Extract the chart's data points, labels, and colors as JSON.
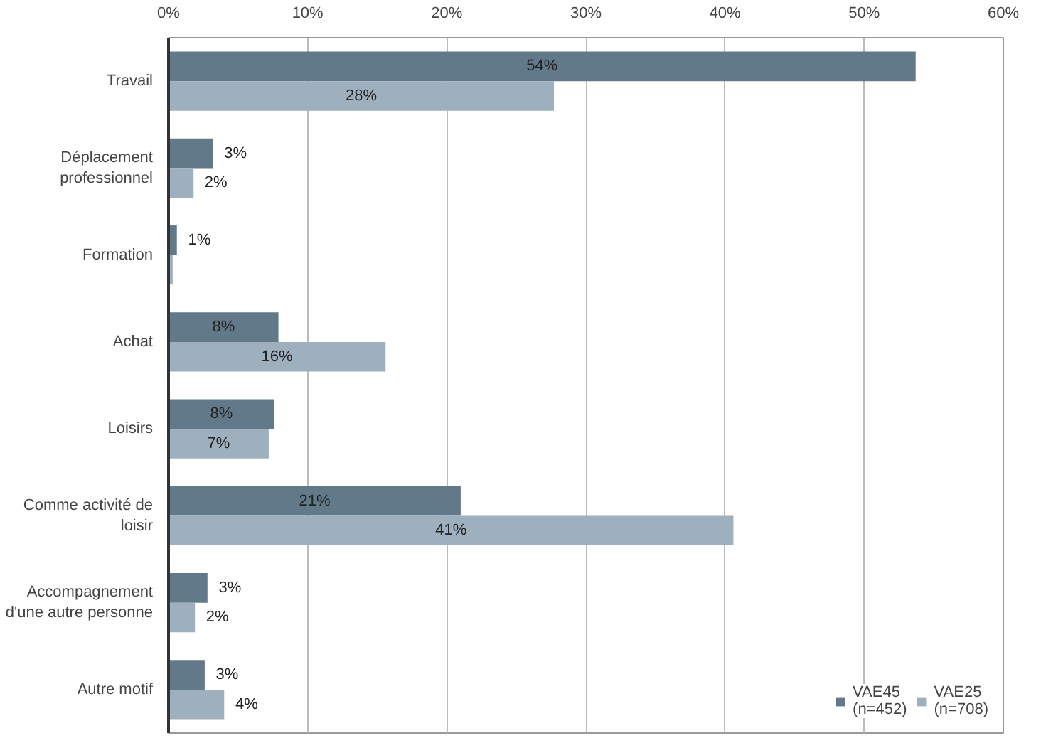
{
  "chart_data": {
    "type": "bar",
    "orientation": "horizontal",
    "categories": [
      "Travail",
      "Déplacement\nprofessionnel",
      "Formation",
      "Achat",
      "Loisirs",
      "Comme activité de\nloisir",
      "Accompagnement\nd'une autre personne",
      "Autre motif"
    ],
    "series": [
      {
        "name": "VAE45\n(n=452)",
        "color": "#62798a",
        "values": [
          53.7,
          3.2,
          0.6,
          7.9,
          7.6,
          21.0,
          2.8,
          2.6
        ],
        "value_labels": [
          "54%",
          "3%",
          "1%",
          "8%",
          "8%",
          "21%",
          "3%",
          "3%"
        ]
      },
      {
        "name": "VAE25\n(n=708)",
        "color": "#9eb0bd",
        "values": [
          27.7,
          1.8,
          0.3,
          15.6,
          7.2,
          40.6,
          1.9,
          4.0
        ],
        "value_labels": [
          "28%",
          "2%",
          null,
          "16%",
          "7%",
          "41%",
          "2%",
          "4%"
        ]
      }
    ],
    "xlim": [
      0,
      60
    ],
    "xticks": [
      {
        "value": 0,
        "label": "0%"
      },
      {
        "value": 10,
        "label": "10%"
      },
      {
        "value": 20,
        "label": "20%"
      },
      {
        "value": 30,
        "label": "30%"
      },
      {
        "value": 40,
        "label": "40%"
      },
      {
        "value": 50,
        "label": "50%"
      },
      {
        "value": 60,
        "label": "60%"
      }
    ],
    "grid": "x",
    "legend": "bottom right"
  }
}
